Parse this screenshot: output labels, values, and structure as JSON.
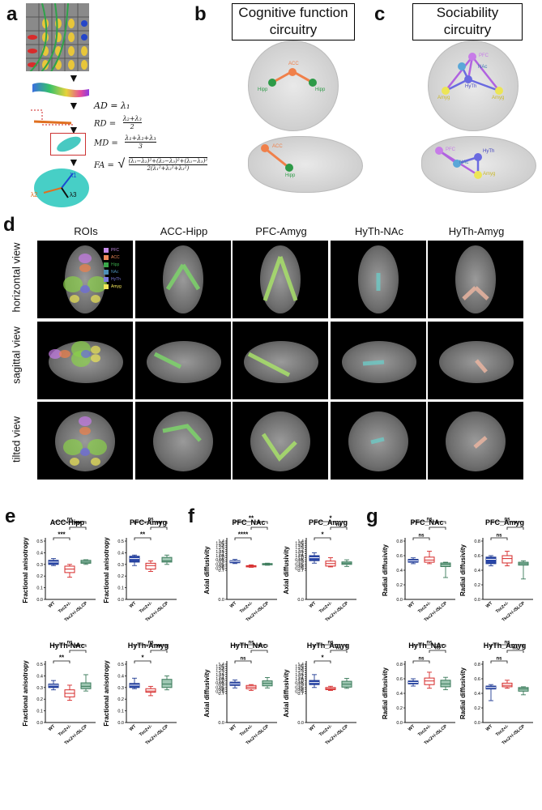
{
  "panels": {
    "a": "a",
    "b": "b",
    "c": "c",
    "d": "d",
    "e": "e",
    "f": "f",
    "g": "g"
  },
  "panel_b": {
    "title_line1": "Cognitive function",
    "title_line2": "circuitry",
    "nodes": {
      "acc": "ACC",
      "hipp_left": "Hipp",
      "hipp_right": "Hipp",
      "acc_sag": "ACC",
      "hipp_sag": "Hipp"
    }
  },
  "panel_c": {
    "title_line1": "Sociability",
    "title_line2": "circuitry",
    "nodes": {
      "pfc": "PFC",
      "nac": "NAc",
      "hyth": "HyTh",
      "amyg_left": "Amyg",
      "amyg_right": "Amyg",
      "pfc_sag": "PFC",
      "nac_sag": "NAc",
      "hyth_sag": "HyTh",
      "amyg_sag": "Amyg"
    }
  },
  "panel_a": {
    "ad": "AD = λ₁",
    "rd_lhs": "RD =",
    "rd_num": "λ₂+λ₃",
    "rd_den": "2",
    "md_lhs": "MD =",
    "md_num": "λ₁+λ₂+λ₃",
    "md_den": "3",
    "fa_lhs": "FA =",
    "fa_num": "(λ₁−λ₂)²+(λ₂−λ₃)²+(λ₁−λ₃)²",
    "fa_den": "2(λ₁²+λ₂²+λ₃²)",
    "eig1": "λ1",
    "eig2": "λ2",
    "eig3": "λ3"
  },
  "panel_d": {
    "columns": [
      "ROIs",
      "ACC-Hipp",
      "PFC-Amyg",
      "HyTh-NAc",
      "HyTh-Amyg"
    ],
    "rows": [
      "horizontal view",
      "sagittal view",
      "tilted view"
    ],
    "legend": [
      {
        "label": "PFC",
        "color": "#c68be8"
      },
      {
        "label": "ACC",
        "color": "#f08a5a"
      },
      {
        "label": "Hipp",
        "color": "#3aa84a"
      },
      {
        "label": "NAc",
        "color": "#4d8fb8"
      },
      {
        "label": "HyTh",
        "color": "#7b7be0"
      },
      {
        "label": "Amyg",
        "color": "#f2e65a"
      }
    ]
  },
  "groups": [
    "WT",
    "Tsc2+/-",
    "Tsc2+/-/SLCP"
  ],
  "group_colors": {
    "WT": "#1f3a93",
    "Tsc2+/-": "#d62828",
    "Tsc2+/-/SLCP": "#3a7a5a"
  },
  "chart_data": [
    {
      "id": "e1",
      "type": "box",
      "title": "ACC-Hipp",
      "ylabel": "Fractional anisotropy",
      "ylim": [
        0.0,
        0.5
      ],
      "yticks": [
        0.0,
        0.1,
        0.2,
        0.3,
        0.4,
        0.5
      ],
      "boxes": [
        {
          "median": 0.32,
          "q1": 0.3,
          "q3": 0.335,
          "min": 0.29,
          "max": 0.35
        },
        {
          "median": 0.26,
          "q1": 0.23,
          "q3": 0.285,
          "min": 0.19,
          "max": 0.3
        },
        {
          "median": 0.32,
          "q1": 0.31,
          "q3": 0.335,
          "min": 0.3,
          "max": 0.34
        }
      ],
      "sig": [
        {
          "pair": [
            0,
            1
          ],
          "label": "***"
        },
        {
          "pair": [
            1,
            2
          ],
          "label": "***"
        },
        {
          "pair": [
            0,
            2
          ],
          "label": "ns"
        }
      ]
    },
    {
      "id": "e2",
      "type": "box",
      "title": "PFC-Amyg",
      "ylabel": "Fractional anisotropy",
      "ylim": [
        0.0,
        0.5
      ],
      "yticks": [
        0.0,
        0.1,
        0.2,
        0.3,
        0.4,
        0.5
      ],
      "boxes": [
        {
          "median": 0.35,
          "q1": 0.32,
          "q3": 0.37,
          "min": 0.29,
          "max": 0.38
        },
        {
          "median": 0.29,
          "q1": 0.26,
          "q3": 0.31,
          "min": 0.24,
          "max": 0.33
        },
        {
          "median": 0.33,
          "q1": 0.32,
          "q3": 0.36,
          "min": 0.3,
          "max": 0.38
        }
      ],
      "sig": [
        {
          "pair": [
            0,
            1
          ],
          "label": "**"
        },
        {
          "pair": [
            1,
            2
          ],
          "label": "**"
        },
        {
          "pair": [
            0,
            2
          ],
          "label": "ns"
        }
      ]
    },
    {
      "id": "e3",
      "type": "box",
      "title": "HyTh-NAc",
      "ylabel": "Fractional anisotropy",
      "ylim": [
        0.0,
        0.5
      ],
      "yticks": [
        0.0,
        0.1,
        0.2,
        0.3,
        0.4,
        0.5
      ],
      "boxes": [
        {
          "median": 0.32,
          "q1": 0.3,
          "q3": 0.33,
          "min": 0.28,
          "max": 0.36
        },
        {
          "median": 0.25,
          "q1": 0.22,
          "q3": 0.28,
          "min": 0.19,
          "max": 0.32
        },
        {
          "median": 0.31,
          "q1": 0.29,
          "q3": 0.34,
          "min": 0.27,
          "max": 0.41
        }
      ],
      "sig": [
        {
          "pair": [
            0,
            1
          ],
          "label": "**"
        },
        {
          "pair": [
            1,
            2
          ],
          "label": "**"
        },
        {
          "pair": [
            0,
            2
          ],
          "label": "ns"
        }
      ]
    },
    {
      "id": "e4",
      "type": "box",
      "title": "HyTh-Amyg",
      "ylabel": "Fractional anisotropy",
      "ylim": [
        0.0,
        0.5
      ],
      "yticks": [
        0.0,
        0.1,
        0.2,
        0.3,
        0.4,
        0.5
      ],
      "boxes": [
        {
          "median": 0.32,
          "q1": 0.3,
          "q3": 0.335,
          "min": 0.29,
          "max": 0.38
        },
        {
          "median": 0.27,
          "q1": 0.26,
          "q3": 0.29,
          "min": 0.23,
          "max": 0.31
        },
        {
          "median": 0.33,
          "q1": 0.3,
          "q3": 0.37,
          "min": 0.28,
          "max": 0.4
        }
      ],
      "sig": [
        {
          "pair": [
            0,
            1
          ],
          "label": "*"
        },
        {
          "pair": [
            1,
            2
          ],
          "label": "**"
        },
        {
          "pair": [
            0,
            2
          ],
          "label": "ns"
        }
      ]
    },
    {
      "id": "f1",
      "type": "box",
      "title": "PFC_NAc",
      "ylabel": "Axial diffusivity",
      "ylim": [
        0.0,
        1.4
      ],
      "yticks": [
        0.0,
        0.7,
        0.75,
        0.8,
        0.85,
        0.9,
        0.95,
        1.0,
        1.05,
        1.1,
        1.15,
        1.2,
        1.25,
        1.3,
        1.35,
        1.4
      ],
      "boxes": [
        {
          "median": 0.91,
          "q1": 0.88,
          "q3": 0.93,
          "min": 0.86,
          "max": 0.96
        },
        {
          "median": 0.8,
          "q1": 0.78,
          "q3": 0.81,
          "min": 0.77,
          "max": 0.83
        },
        {
          "median": 0.84,
          "q1": 0.83,
          "q3": 0.86,
          "min": 0.82,
          "max": 0.87
        }
      ],
      "sig": [
        {
          "pair": [
            0,
            1
          ],
          "label": "****"
        },
        {
          "pair": [
            1,
            2
          ],
          "label": "*"
        },
        {
          "pair": [
            0,
            2
          ],
          "label": "**"
        }
      ]
    },
    {
      "id": "f2",
      "type": "box",
      "title": "PFC_Amyg",
      "ylabel": "Axial diffusivity",
      "ylim": [
        0.0,
        1.4
      ],
      "yticks": [
        0.0,
        0.7,
        0.75,
        0.8,
        0.85,
        0.9,
        0.95,
        1.0,
        1.05,
        1.1,
        1.15,
        1.2,
        1.25,
        1.3,
        1.35,
        1.4
      ],
      "boxes": [
        {
          "median": 1.0,
          "q1": 0.93,
          "q3": 1.05,
          "min": 0.87,
          "max": 1.12
        },
        {
          "median": 0.86,
          "q1": 0.8,
          "q3": 0.92,
          "min": 0.78,
          "max": 1.0
        },
        {
          "median": 0.87,
          "q1": 0.84,
          "q3": 0.9,
          "min": 0.79,
          "max": 0.95
        }
      ],
      "sig": [
        {
          "pair": [
            0,
            1
          ],
          "label": "*"
        },
        {
          "pair": [
            1,
            2
          ],
          "label": "ns"
        },
        {
          "pair": [
            0,
            2
          ],
          "label": "*"
        }
      ]
    },
    {
      "id": "f3",
      "type": "box",
      "title": "HyTh_NAc",
      "ylabel": "Axial diffusivity",
      "ylim": [
        0.0,
        1.4
      ],
      "yticks": [
        0.0,
        0.7,
        0.75,
        0.8,
        0.85,
        0.9,
        0.95,
        1.0,
        1.05,
        1.1,
        1.15,
        1.2,
        1.25,
        1.3,
        1.35,
        1.4
      ],
      "boxes": [
        {
          "median": 0.93,
          "q1": 0.89,
          "q3": 0.97,
          "min": 0.83,
          "max": 1.02
        },
        {
          "median": 0.85,
          "q1": 0.81,
          "q3": 0.89,
          "min": 0.77,
          "max": 0.91
        },
        {
          "median": 0.94,
          "q1": 0.88,
          "q3": 1.0,
          "min": 0.83,
          "max": 1.08
        }
      ],
      "sig": [
        {
          "pair": [
            0,
            1
          ],
          "label": "ns"
        },
        {
          "pair": [
            1,
            2
          ],
          "label": "*"
        },
        {
          "pair": [
            0,
            2
          ],
          "label": "ns"
        }
      ]
    },
    {
      "id": "f4",
      "type": "box",
      "title": "HyTh_Amyg",
      "ylabel": "Axial diffusivity",
      "ylim": [
        0.0,
        1.4
      ],
      "yticks": [
        0.0,
        0.7,
        0.75,
        0.8,
        0.85,
        0.9,
        0.95,
        1.0,
        1.05,
        1.1,
        1.15,
        1.2,
        1.25,
        1.3,
        1.35,
        1.4
      ],
      "boxes": [
        {
          "median": 0.96,
          "q1": 0.91,
          "q3": 1.01,
          "min": 0.84,
          "max": 1.15
        },
        {
          "median": 0.81,
          "q1": 0.79,
          "q3": 0.84,
          "min": 0.77,
          "max": 0.87
        },
        {
          "median": 0.92,
          "q1": 0.85,
          "q3": 0.99,
          "min": 0.82,
          "max": 1.06
        }
      ],
      "sig": [
        {
          "pair": [
            0,
            1
          ],
          "label": "*"
        },
        {
          "pair": [
            1,
            2
          ],
          "label": "ns"
        },
        {
          "pair": [
            0,
            2
          ],
          "label": "ns"
        }
      ]
    },
    {
      "id": "g1",
      "type": "box",
      "title": "PFC_NAc",
      "ylabel": "Radial diffusivity",
      "ylim": [
        0.0,
        0.8
      ],
      "yticks": [
        0.0,
        0.2,
        0.4,
        0.6,
        0.8
      ],
      "boxes": [
        {
          "median": 0.53,
          "q1": 0.51,
          "q3": 0.55,
          "min": 0.49,
          "max": 0.57
        },
        {
          "median": 0.54,
          "q1": 0.51,
          "q3": 0.58,
          "min": 0.49,
          "max": 0.66
        },
        {
          "median": 0.48,
          "q1": 0.45,
          "q3": 0.5,
          "min": 0.3,
          "max": 0.51
        }
      ],
      "sig": [
        {
          "pair": [
            0,
            1
          ],
          "label": "ns"
        },
        {
          "pair": [
            1,
            2
          ],
          "label": "*"
        },
        {
          "pair": [
            0,
            2
          ],
          "label": "ns"
        }
      ]
    },
    {
      "id": "g2",
      "type": "box",
      "title": "PFC_Amyg",
      "ylabel": "Radial diffusivity",
      "ylim": [
        0.0,
        0.8
      ],
      "yticks": [
        0.0,
        0.2,
        0.4,
        0.6,
        0.8
      ],
      "boxes": [
        {
          "median": 0.55,
          "q1": 0.49,
          "q3": 0.58,
          "min": 0.46,
          "max": 0.6
        },
        {
          "median": 0.56,
          "q1": 0.5,
          "q3": 0.6,
          "min": 0.46,
          "max": 0.66
        },
        {
          "median": 0.49,
          "q1": 0.47,
          "q3": 0.51,
          "min": 0.28,
          "max": 0.53
        }
      ],
      "sig": [
        {
          "pair": [
            0,
            1
          ],
          "label": "ns"
        },
        {
          "pair": [
            1,
            2
          ],
          "label": "*"
        },
        {
          "pair": [
            0,
            2
          ],
          "label": "ns"
        }
      ]
    },
    {
      "id": "g3",
      "type": "box",
      "title": "HyTh_NAc",
      "ylabel": "Radial diffusivity",
      "ylim": [
        0.0,
        0.8
      ],
      "yticks": [
        0.0,
        0.2,
        0.4,
        0.6,
        0.8
      ],
      "boxes": [
        {
          "median": 0.55,
          "q1": 0.53,
          "q3": 0.57,
          "min": 0.5,
          "max": 0.6
        },
        {
          "median": 0.57,
          "q1": 0.52,
          "q3": 0.61,
          "min": 0.47,
          "max": 0.69
        },
        {
          "median": 0.53,
          "q1": 0.49,
          "q3": 0.58,
          "min": 0.45,
          "max": 0.62
        }
      ],
      "sig": [
        {
          "pair": [
            0,
            1
          ],
          "label": "ns"
        },
        {
          "pair": [
            1,
            2
          ],
          "label": "ns"
        },
        {
          "pair": [
            0,
            2
          ],
          "label": "ns"
        }
      ]
    },
    {
      "id": "g4",
      "type": "box",
      "title": "HyTh_Amyg",
      "ylabel": "Radial diffusivity",
      "ylim": [
        0.0,
        0.8
      ],
      "yticks": [
        0.0,
        0.2,
        0.4,
        0.6,
        0.8
      ],
      "boxes": [
        {
          "median": 0.48,
          "q1": 0.46,
          "q3": 0.5,
          "min": 0.3,
          "max": 0.52
        },
        {
          "median": 0.51,
          "q1": 0.49,
          "q3": 0.54,
          "min": 0.47,
          "max": 0.58
        },
        {
          "median": 0.46,
          "q1": 0.43,
          "q3": 0.48,
          "min": 0.38,
          "max": 0.49
        }
      ],
      "sig": [
        {
          "pair": [
            0,
            1
          ],
          "label": "ns"
        },
        {
          "pair": [
            1,
            2
          ],
          "label": "ns"
        },
        {
          "pair": [
            0,
            2
          ],
          "label": "ns"
        }
      ]
    }
  ]
}
